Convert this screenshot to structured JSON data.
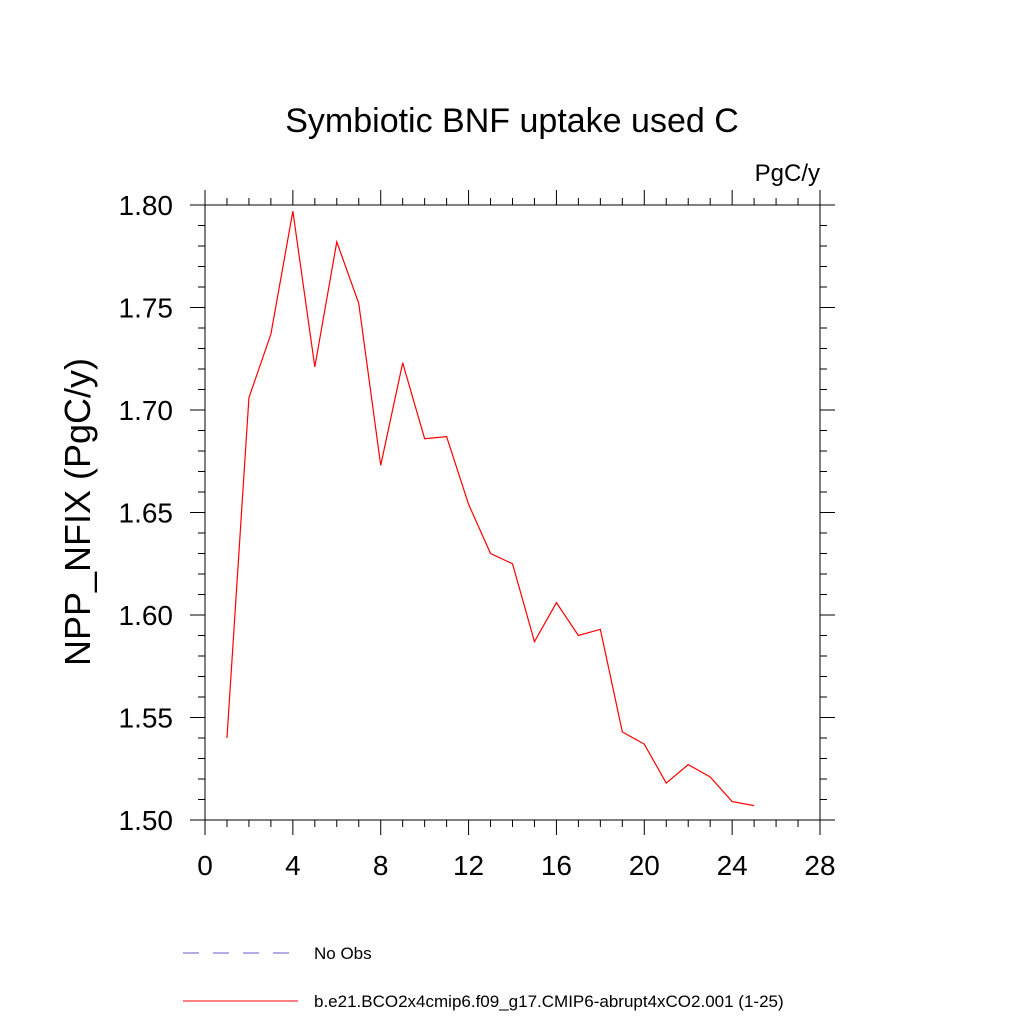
{
  "chart_data": {
    "type": "line",
    "title": "Symbiotic BNF uptake used C",
    "units_label": "PgC/y",
    "xlabel": "",
    "ylabel": "NPP_NFIX  (PgC/y)",
    "xlim": [
      0,
      28
    ],
    "ylim": [
      1.5,
      1.8
    ],
    "x_ticks": [
      0,
      4,
      8,
      12,
      16,
      20,
      24,
      28
    ],
    "x_tick_labels": [
      "0",
      "4",
      "8",
      "12",
      "16",
      "20",
      "24",
      "28"
    ],
    "y_ticks": [
      1.5,
      1.55,
      1.6,
      1.65,
      1.7,
      1.75,
      1.8
    ],
    "y_tick_labels": [
      "1.50",
      "1.55",
      "1.60",
      "1.65",
      "1.70",
      "1.75",
      "1.80"
    ],
    "grid": false,
    "legend_placement": "bottom-left",
    "series": [
      {
        "name": "b.e21.BCO2x4cmip6.f09_g17.CMIP6-abrupt4xCO2.001 (1-25)",
        "color": "#ff0000",
        "dash": "solid",
        "x": [
          1,
          2,
          3,
          4,
          5,
          6,
          7,
          8,
          9,
          10,
          11,
          12,
          13,
          14,
          15,
          16,
          17,
          18,
          19,
          20,
          21,
          22,
          23,
          24,
          25
        ],
        "y": [
          1.54,
          1.706,
          1.737,
          1.797,
          1.721,
          1.782,
          1.752,
          1.673,
          1.723,
          1.686,
          1.687,
          1.654,
          1.63,
          1.625,
          1.587,
          1.606,
          1.59,
          1.593,
          1.543,
          1.537,
          1.518,
          1.527,
          1.521,
          1.509,
          1.507
        ]
      }
    ],
    "legend": [
      {
        "label": "No Obs",
        "color": "#6a5acd",
        "dash": "dashed"
      },
      {
        "label": "b.e21.BCO2x4cmip6.f09_g17.CMIP6-abrupt4xCO2.001 (1-25)",
        "color": "#ff0000",
        "dash": "solid"
      }
    ]
  }
}
